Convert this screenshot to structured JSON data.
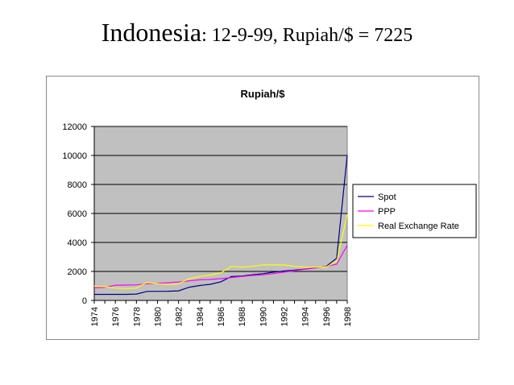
{
  "slide": {
    "title_main": "Indonesia",
    "title_rest": ": 12-9-99, Rupiah/$ = 7225"
  },
  "chart_data": {
    "type": "line",
    "title": "Rupiah/$",
    "xlabel": "",
    "ylabel": "",
    "ylim": [
      0,
      12000
    ],
    "yticks": [
      "0",
      "2000",
      "4000",
      "6000",
      "8000",
      "10000",
      "12000"
    ],
    "x": [
      1974,
      1975,
      1976,
      1977,
      1978,
      1979,
      1980,
      1981,
      1982,
      1983,
      1984,
      1985,
      1986,
      1987,
      1988,
      1989,
      1990,
      1991,
      1992,
      1993,
      1994,
      1995,
      1996,
      1997,
      1998
    ],
    "xtick_labels": [
      "1974",
      "1976",
      "1978",
      "1980",
      "1982",
      "1984",
      "1986",
      "1988",
      "1990",
      "1992",
      "1994",
      "1996",
      "1998"
    ],
    "grid": true,
    "legend_position": "right",
    "plot_background": "#c0c0c0",
    "series": [
      {
        "name": "Spot",
        "color": "#000080",
        "values": [
          415,
          415,
          415,
          415,
          440,
          625,
          627,
          632,
          661,
          909,
          1026,
          1111,
          1283,
          1644,
          1686,
          1770,
          1843,
          1950,
          2030,
          2087,
          2161,
          2249,
          2342,
          2909,
          10014
        ]
      },
      {
        "name": "PPP",
        "color": "#ff00ff",
        "values": [
          870,
          900,
          1050,
          1060,
          1070,
          1150,
          1180,
          1220,
          1270,
          1350,
          1420,
          1450,
          1500,
          1580,
          1650,
          1720,
          1760,
          1850,
          1950,
          2050,
          2150,
          2250,
          2350,
          2500,
          3800
        ]
      },
      {
        "name": "Real Exchange Rate",
        "color": "#ffff00",
        "values": [
          1000,
          950,
          850,
          820,
          850,
          1250,
          1150,
          1100,
          1150,
          1500,
          1650,
          1750,
          1900,
          2350,
          2300,
          2350,
          2450,
          2450,
          2450,
          2350,
          2300,
          2300,
          2300,
          2700,
          5900
        ]
      }
    ]
  }
}
